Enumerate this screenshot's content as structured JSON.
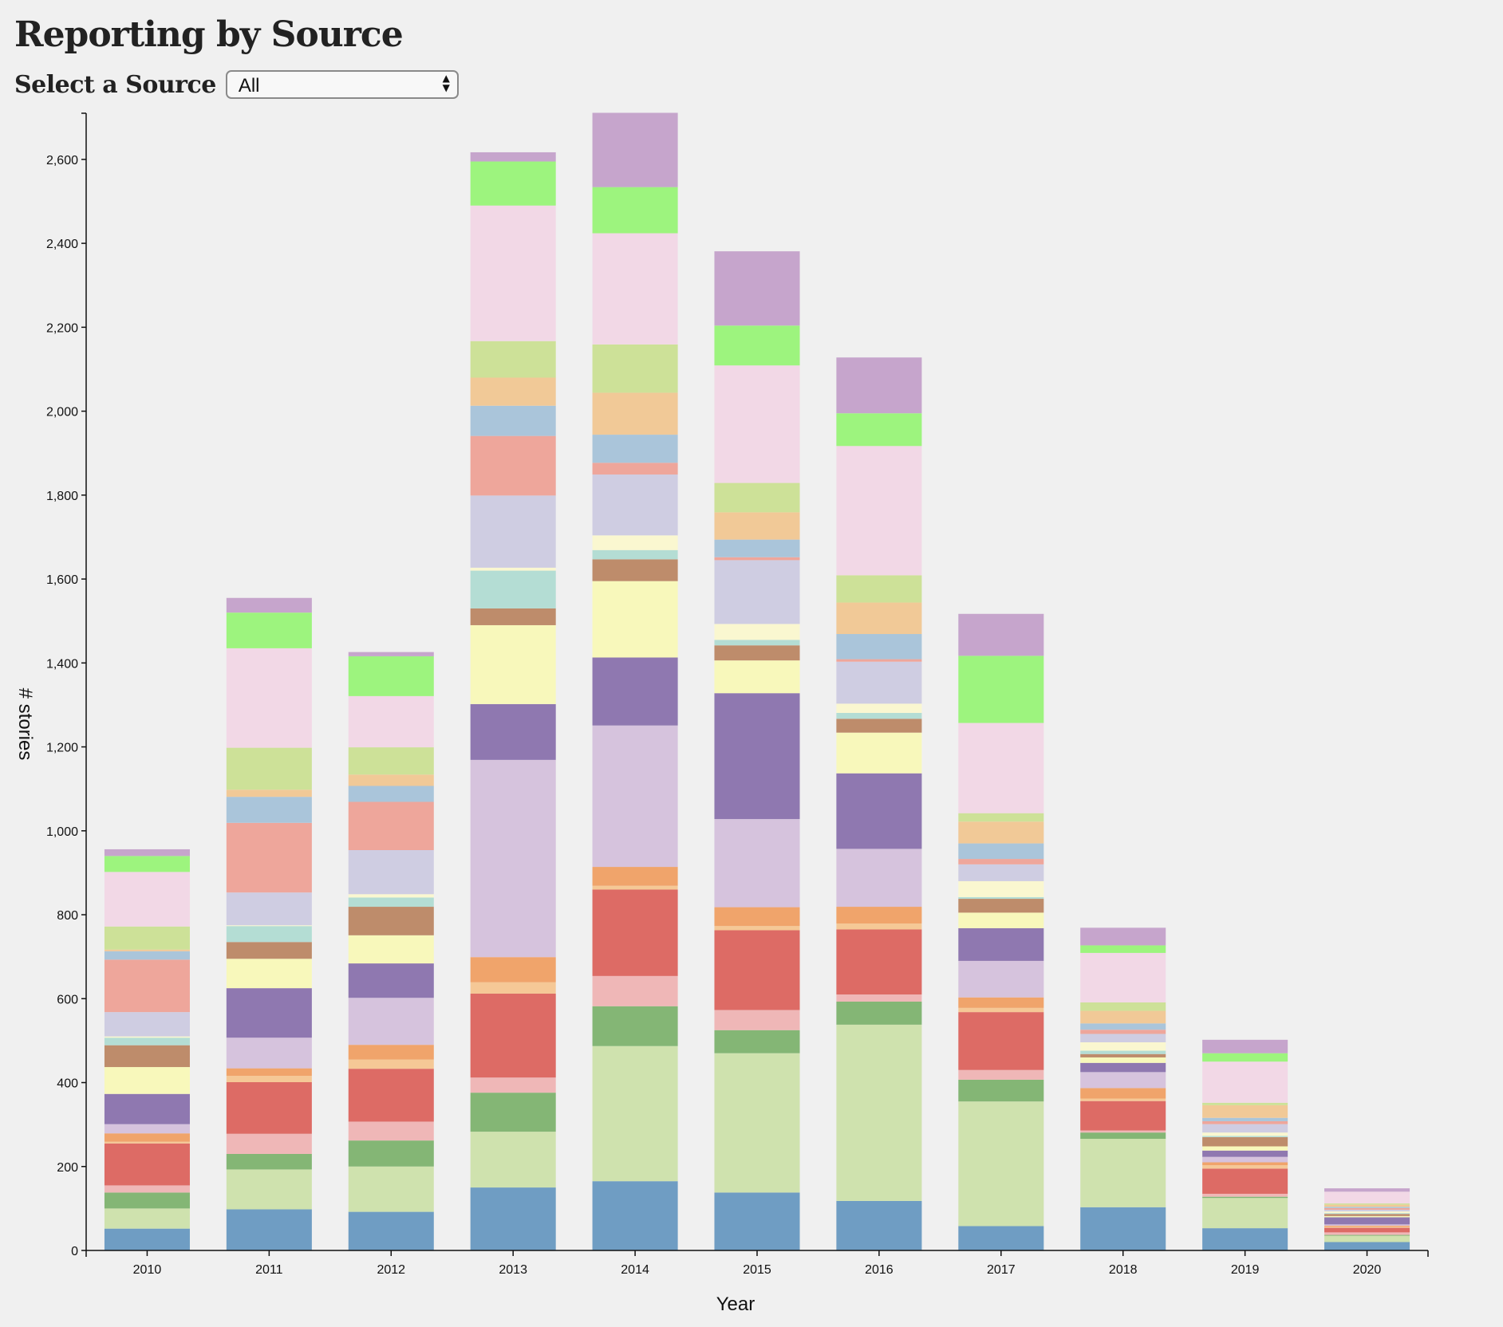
{
  "header": {
    "title": "Reporting by Source",
    "select_label": "Select a Source",
    "select_value": "All"
  },
  "chart_data": {
    "type": "bar",
    "stacked": true,
    "title": "Reporting by Source",
    "xlabel": "Year",
    "ylabel": "# stories",
    "ylim": [
      0,
      2710
    ],
    "yticks": [
      0,
      200,
      400,
      600,
      800,
      1000,
      1200,
      1400,
      1600,
      1800,
      2000,
      2200,
      2400,
      2600
    ],
    "categories": [
      "2010",
      "2011",
      "2012",
      "2013",
      "2014",
      "2015",
      "2016",
      "2017",
      "2018",
      "2019",
      "2020"
    ],
    "grid": false,
    "legend": "none",
    "series": [
      {
        "color": "#6f9dc3",
        "values": [
          52,
          98,
          92,
          150,
          165,
          138,
          118,
          58,
          103,
          53,
          20
        ]
      },
      {
        "color": "#cfe2ae",
        "values": [
          48,
          95,
          108,
          133,
          322,
          332,
          420,
          297,
          163,
          72,
          15
        ]
      },
      {
        "color": "#84b675",
        "values": [
          38,
          37,
          62,
          93,
          95,
          55,
          55,
          52,
          15,
          3,
          2
        ]
      },
      {
        "color": "#efb7b7",
        "values": [
          17,
          48,
          45,
          36,
          72,
          48,
          17,
          23,
          5,
          7,
          6
        ]
      },
      {
        "color": "#dd6b65",
        "values": [
          100,
          123,
          126,
          200,
          206,
          190,
          155,
          138,
          70,
          60,
          11
        ]
      },
      {
        "color": "#f5c896",
        "values": [
          4,
          15,
          22,
          27,
          9,
          10,
          14,
          10,
          6,
          8,
          3
        ]
      },
      {
        "color": "#f0a46b",
        "values": [
          20,
          18,
          35,
          60,
          45,
          45,
          40,
          25,
          25,
          7,
          2
        ]
      },
      {
        "color": "#d6c3dd",
        "values": [
          22,
          73,
          112,
          470,
          337,
          210,
          138,
          87,
          38,
          13,
          3
        ]
      },
      {
        "color": "#8f78b0",
        "values": [
          72,
          118,
          82,
          133,
          162,
          300,
          180,
          78,
          22,
          15,
          17
        ]
      },
      {
        "color": "#f8f8bb",
        "values": [
          64,
          70,
          67,
          188,
          182,
          78,
          97,
          37,
          13,
          10,
          3
        ]
      },
      {
        "color": "#be8c6b",
        "values": [
          52,
          40,
          68,
          40,
          52,
          36,
          33,
          33,
          8,
          22,
          5
        ]
      },
      {
        "color": "#b4ddd4",
        "values": [
          18,
          38,
          22,
          90,
          22,
          13,
          14,
          4,
          8,
          3,
          2
        ]
      },
      {
        "color": "#faf7d0",
        "values": [
          3,
          2,
          8,
          7,
          35,
          38,
          22,
          38,
          20,
          8,
          4
        ]
      },
      {
        "color": "#cfcde2",
        "values": [
          58,
          78,
          105,
          172,
          145,
          152,
          100,
          40,
          20,
          20,
          4
        ]
      },
      {
        "color": "#eea69b",
        "values": [
          125,
          166,
          115,
          142,
          28,
          7,
          6,
          13,
          10,
          7,
          4
        ]
      },
      {
        "color": "#aac5da",
        "values": [
          20,
          62,
          38,
          72,
          67,
          42,
          60,
          37,
          15,
          8,
          3
        ]
      },
      {
        "color": "#f1c997",
        "values": [
          4,
          17,
          27,
          67,
          100,
          65,
          75,
          52,
          30,
          30,
          5
        ]
      },
      {
        "color": "#cde198",
        "values": [
          55,
          100,
          65,
          87,
          115,
          70,
          65,
          20,
          20,
          6,
          3
        ]
      },
      {
        "color": "#f2d8e6",
        "values": [
          130,
          237,
          122,
          323,
          265,
          280,
          308,
          215,
          118,
          98,
          28
        ]
      },
      {
        "color": "#9df47e",
        "values": [
          38,
          85,
          95,
          105,
          110,
          95,
          78,
          160,
          18,
          20,
          0
        ]
      },
      {
        "color": "#c6a5cc",
        "values": [
          16,
          35,
          10,
          22,
          177,
          177,
          133,
          100,
          42,
          32,
          8
        ]
      }
    ]
  }
}
